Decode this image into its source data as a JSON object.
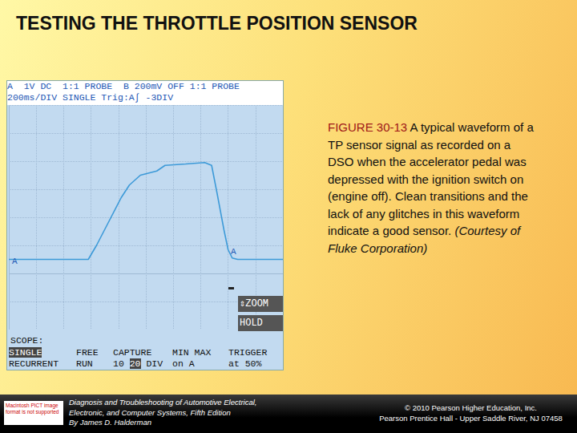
{
  "title": "TESTING THE THROTTLE POSITION SENSOR",
  "scope": {
    "header": [
      "A  1V DC  1:1 PROBE  B 200mV OFF 1:1 PROBE",
      "200ms/DIV SINGLE Trig:A∫ -3DIV"
    ],
    "trace_markers": [
      "A",
      "A"
    ],
    "buttons": [
      "⇕ZOOM",
      "HOLD"
    ],
    "menu_title": "SCOPE:",
    "menu": [
      {
        "top": [
          "SINGLE"
        ],
        "bottom": [
          "RECURRENT"
        ]
      },
      {
        "top": [
          "FREE"
        ],
        "bottom": [
          "RUN"
        ]
      },
      {
        "top": [
          "CAPTURE"
        ],
        "bottom": [
          "10",
          "20",
          "DIV"
        ]
      },
      {
        "top": [
          "MIN MAX"
        ],
        "bottom": [
          "on A"
        ]
      },
      {
        "top": [
          "TRIGGER"
        ],
        "bottom": [
          "at 50%"
        ]
      }
    ]
  },
  "chart_data": {
    "type": "line",
    "x": [
      0,
      580,
      640,
      730,
      820,
      880,
      960,
      1080,
      1140,
      1290,
      1430,
      1480,
      1520,
      1570,
      1600,
      1630,
      1670,
      2000
    ],
    "values": [
      0.5,
      0.5,
      1.0,
      1.85,
      2.7,
      3.15,
      3.5,
      3.65,
      3.85,
      3.9,
      3.95,
      3.85,
      2.85,
      1.55,
      0.85,
      0.55,
      0.5,
      0.5
    ],
    "color": "#3d9ad8",
    "xlim": [
      0,
      2000
    ],
    "xticks": [
      0,
      200,
      400,
      600,
      800,
      1000,
      1200,
      1400,
      1600,
      1800,
      2000
    ],
    "ylim": [
      -2,
      6
    ],
    "yticks": [
      -2,
      -1,
      0,
      1,
      2,
      3,
      4,
      5,
      6
    ],
    "grid": true,
    "tick_labels": false
  },
  "caption": {
    "label": "FIGURE 30-13",
    "text": "A typical waveform of a TP sensor signal as recorded on a DSO when the accelerator pedal was depressed with the ignition switch on (engine off). Clean transitions and the lack of any glitches in this waveform indicate a good sensor.",
    "credit": "(Courtesy of Fluke Corporation)"
  },
  "footer": {
    "logo": "Macintosh PICT image format is not supported",
    "book": [
      "Diagnosis and Troubleshooting of Automotive Electrical,",
      "Electronic, and Computer Systems, Fifth Edition",
      "By James D. Halderman"
    ],
    "publisher": [
      "© 2010 Pearson Higher Education, Inc.",
      "Pearson Prentice Hall - Upper Saddle River, NJ 07458"
    ]
  }
}
